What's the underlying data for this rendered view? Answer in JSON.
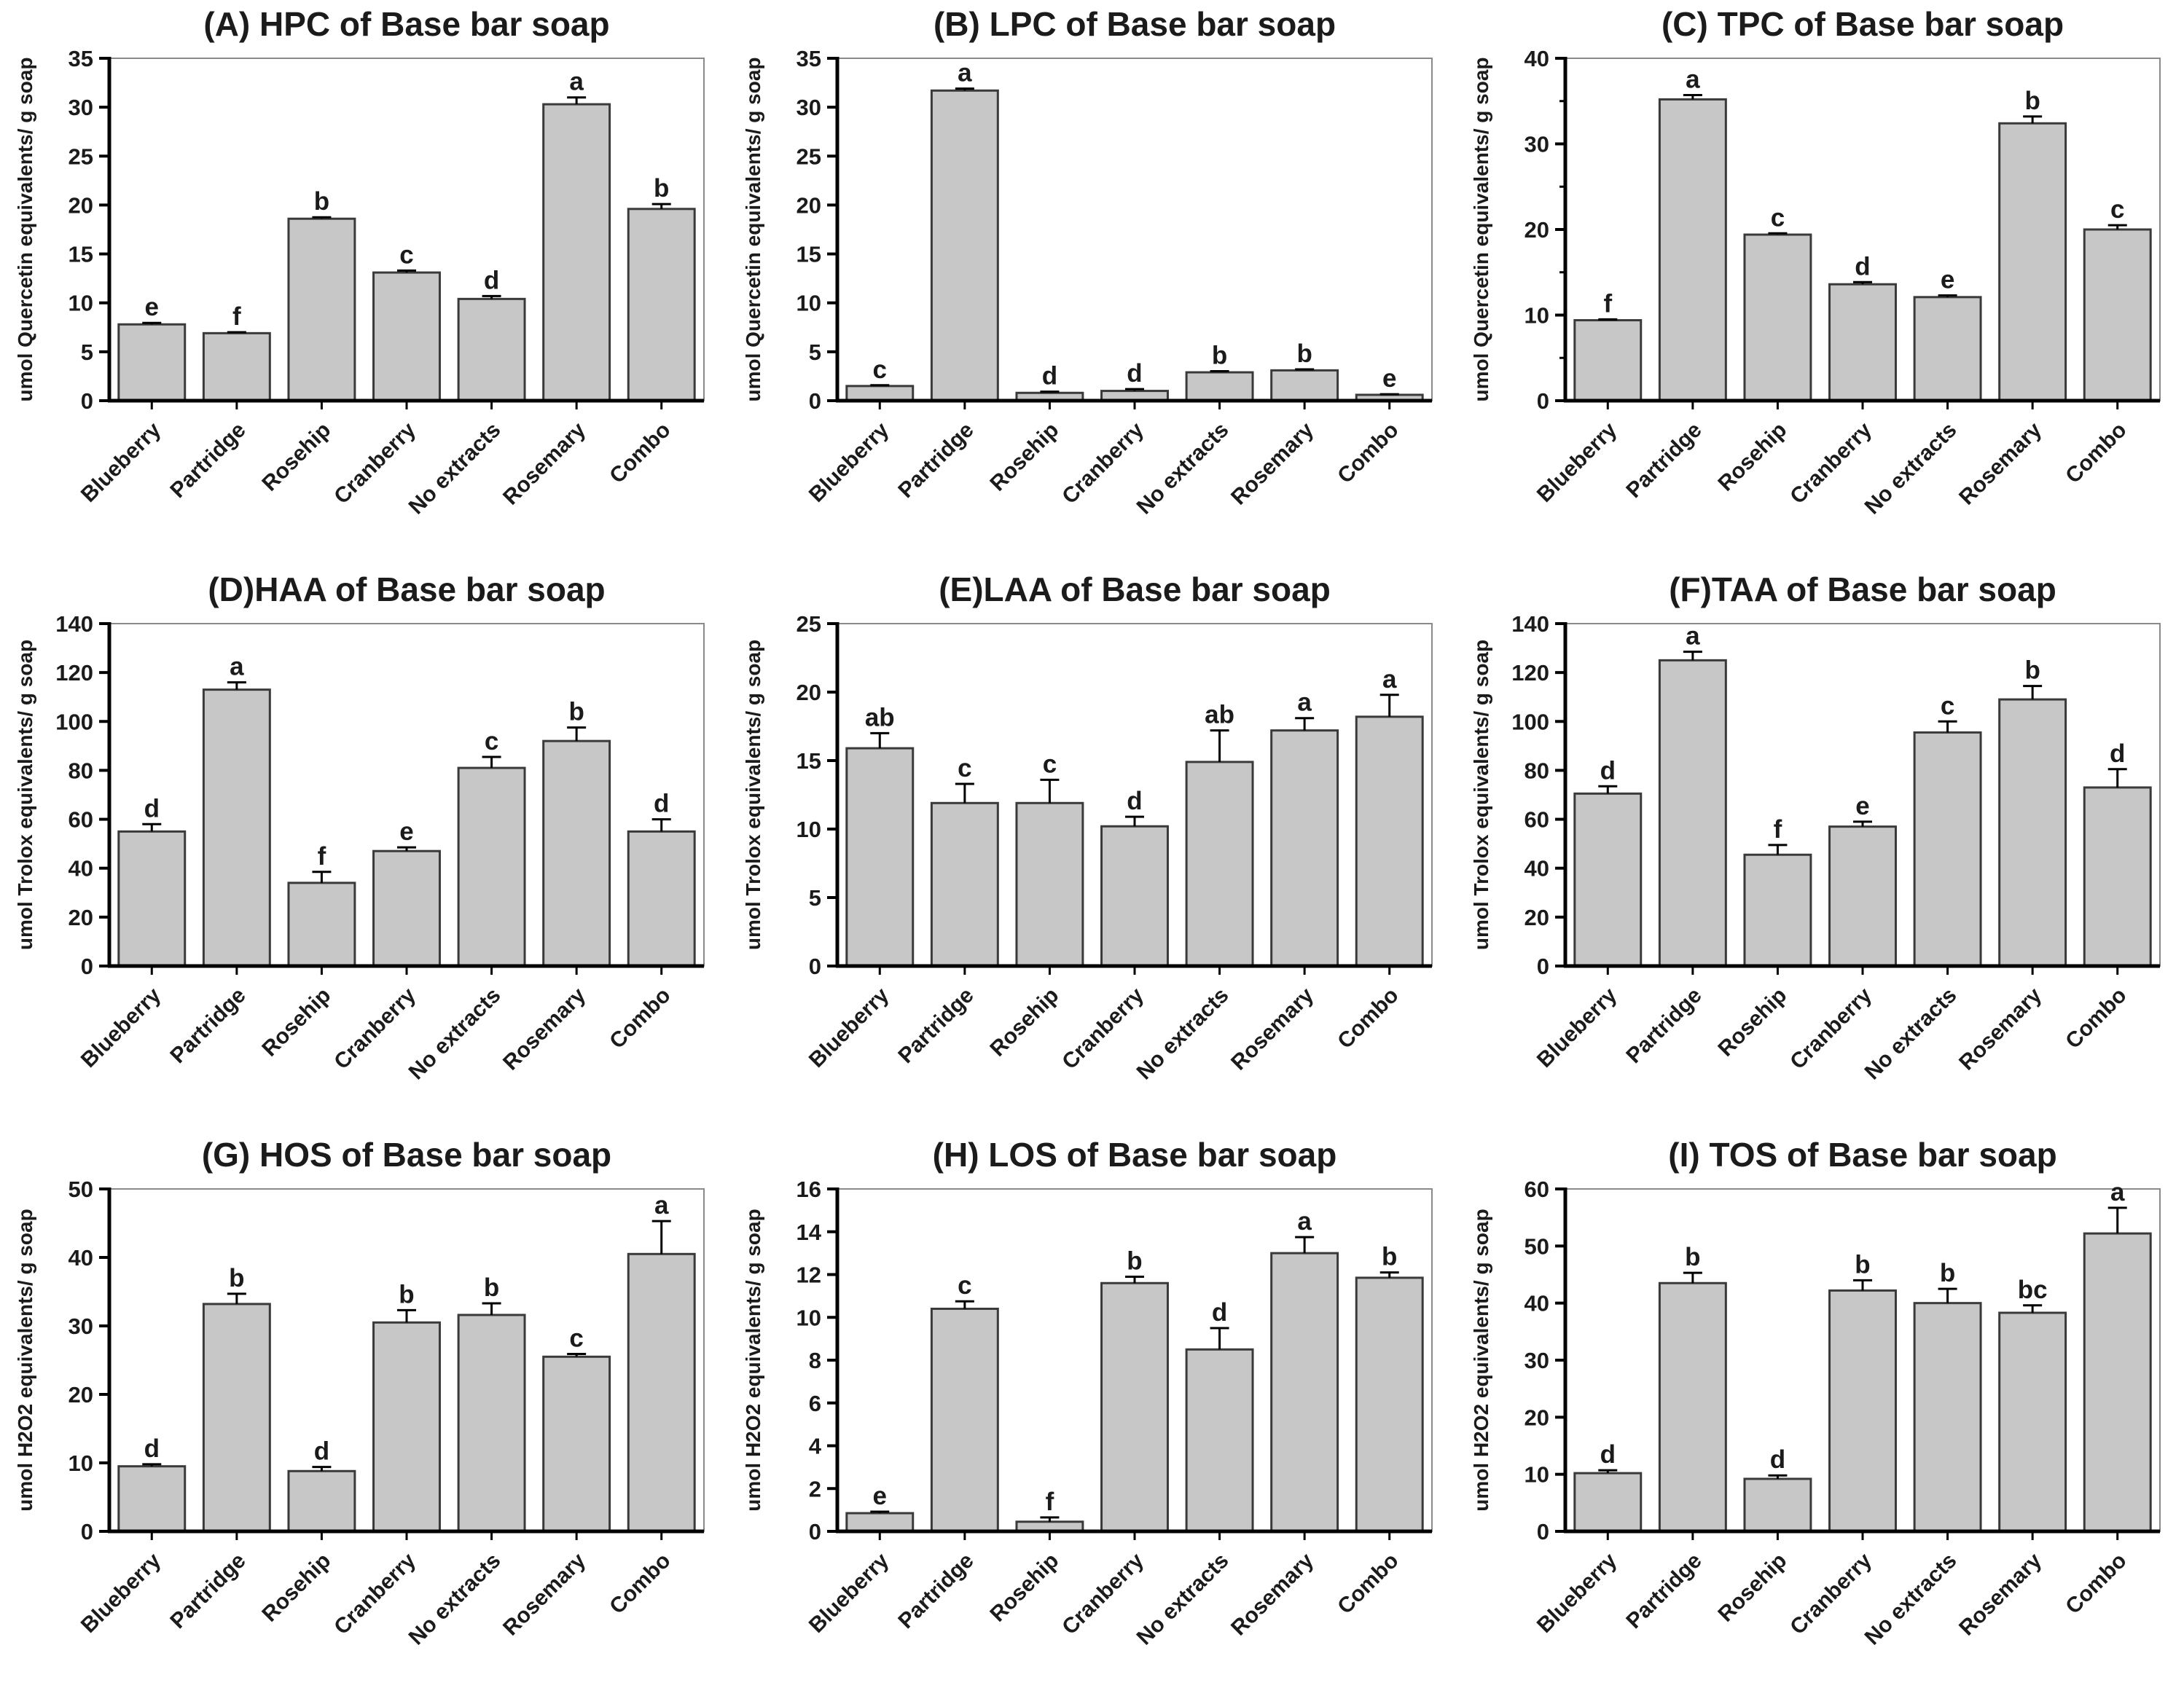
{
  "style": {
    "bar_fill": "#c7c7c7",
    "bar_stroke": "#3a3a3a",
    "axis_color": "#000000",
    "frame_color": "#8a8a8a",
    "text_color": "#1b1b1b",
    "background": "#ffffff"
  },
  "chart_data": [
    {
      "type": "bar",
      "panel": "A",
      "title": "(A) HPC of Base bar soap",
      "ylabel": "umol Quercetin equivalents/ g soap",
      "xlabel": "",
      "categories": [
        "Blueberry",
        "Partridge",
        "Rosehip",
        "Cranberry",
        "No extracts",
        "Rosemary",
        "Combo"
      ],
      "values": [
        7.8,
        6.9,
        18.6,
        13.1,
        10.4,
        30.3,
        19.6
      ],
      "errors": [
        0.15,
        0.1,
        0.15,
        0.2,
        0.3,
        0.7,
        0.5
      ],
      "sig_letters": [
        "e",
        "f",
        "b",
        "c",
        "d",
        "a",
        "b"
      ],
      "ylim": [
        0,
        35
      ],
      "ytick_step": 5,
      "yminor_step": null,
      "grid": false,
      "legend": null
    },
    {
      "type": "bar",
      "panel": "B",
      "title": "(B) LPC of Base bar soap",
      "ylabel": "umol Quercetin equivalents/ g soap",
      "xlabel": "",
      "categories": [
        "Blueberry",
        "Partridge",
        "Rosehip",
        "Cranberry",
        "No extracts",
        "Rosemary",
        "Combo"
      ],
      "values": [
        1.5,
        31.7,
        0.8,
        1.0,
        2.9,
        3.1,
        0.6
      ],
      "errors": [
        0.08,
        0.2,
        0.12,
        0.18,
        0.12,
        0.1,
        0.06
      ],
      "sig_letters": [
        "c",
        "a",
        "d",
        "d",
        "b",
        "b",
        "e"
      ],
      "ylim": [
        0,
        35
      ],
      "ytick_step": 5,
      "yminor_step": null,
      "grid": false,
      "legend": null
    },
    {
      "type": "bar",
      "panel": "C",
      "title": "(C) TPC of Base bar soap",
      "ylabel": "umol Quercetin equivalents/ g soap",
      "xlabel": "",
      "categories": [
        "Blueberry",
        "Partridge",
        "Rosehip",
        "Cranberry",
        "No extracts",
        "Rosemary",
        "Combo"
      ],
      "values": [
        9.4,
        35.2,
        19.4,
        13.6,
        12.1,
        32.4,
        20.0
      ],
      "errors": [
        0.1,
        0.5,
        0.15,
        0.25,
        0.2,
        0.8,
        0.5
      ],
      "sig_letters": [
        "f",
        "a",
        "c",
        "d",
        "e",
        "b",
        "c"
      ],
      "ylim": [
        0,
        40
      ],
      "ytick_step": 10,
      "yminor_step": 5,
      "grid": false,
      "legend": null
    },
    {
      "type": "bar",
      "panel": "D",
      "title": "(D)HAA of Base bar soap",
      "ylabel": "umol Trolox equivalents/ g soap",
      "xlabel": "",
      "categories": [
        "Blueberry",
        "Partridge",
        "Rosehip",
        "Cranberry",
        "No extracts",
        "Rosemary",
        "Combo"
      ],
      "values": [
        55,
        113,
        34,
        47,
        81,
        92,
        55
      ],
      "errors": [
        3,
        3,
        4.5,
        1.5,
        4.5,
        5.5,
        5
      ],
      "sig_letters": [
        "d",
        "a",
        "f",
        "e",
        "c",
        "b",
        "d"
      ],
      "ylim": [
        0,
        140
      ],
      "ytick_step": 20,
      "yminor_step": null,
      "grid": false,
      "legend": null
    },
    {
      "type": "bar",
      "panel": "E",
      "title": "(E)LAA of Base bar soap",
      "ylabel": "umol Trolox equivalents/ g soap",
      "xlabel": "",
      "categories": [
        "Blueberry",
        "Partridge",
        "Rosehip",
        "Cranberry",
        "No extracts",
        "Rosemary",
        "Combo"
      ],
      "values": [
        15.9,
        11.9,
        11.9,
        10.2,
        14.9,
        17.2,
        18.2
      ],
      "errors": [
        1.1,
        1.4,
        1.7,
        0.7,
        2.3,
        0.9,
        1.6
      ],
      "sig_letters": [
        "ab",
        "c",
        "c",
        "d",
        "ab",
        "a",
        "a"
      ],
      "ylim": [
        0,
        25
      ],
      "ytick_step": 5,
      "yminor_step": null,
      "grid": false,
      "legend": null
    },
    {
      "type": "bar",
      "panel": "F",
      "title": "(F)TAA of Base bar soap",
      "ylabel": "umol Trolox equivalents/ g soap",
      "xlabel": "",
      "categories": [
        "Blueberry",
        "Partridge",
        "Rosehip",
        "Cranberry",
        "No extracts",
        "Rosemary",
        "Combo"
      ],
      "values": [
        70.5,
        125,
        45.5,
        57,
        95.5,
        109,
        73
      ],
      "errors": [
        3,
        3.5,
        4,
        2,
        4.5,
        5.5,
        7.5
      ],
      "sig_letters": [
        "d",
        "a",
        "f",
        "e",
        "c",
        "b",
        "d"
      ],
      "ylim": [
        0,
        140
      ],
      "ytick_step": 20,
      "yminor_step": null,
      "grid": false,
      "legend": null
    },
    {
      "type": "bar",
      "panel": "G",
      "title": "(G) HOS of Base bar soap",
      "ylabel": "umol H2O2 equivalents/ g soap",
      "xlabel": "",
      "categories": [
        "Blueberry",
        "Partridge",
        "Rosehip",
        "Cranberry",
        "No extracts",
        "Rosemary",
        "Combo"
      ],
      "values": [
        9.5,
        33.2,
        8.8,
        30.5,
        31.6,
        25.5,
        40.5
      ],
      "errors": [
        0.3,
        1.5,
        0.6,
        1.8,
        1.7,
        0.4,
        4.8
      ],
      "sig_letters": [
        "d",
        "b",
        "d",
        "b",
        "b",
        "c",
        "a"
      ],
      "ylim": [
        0,
        50
      ],
      "ytick_step": 10,
      "yminor_step": null,
      "grid": false,
      "legend": null
    },
    {
      "type": "bar",
      "panel": "H",
      "title": "(H) LOS of Base bar soap",
      "ylabel": "umol H2O2 equivalents/ g soap",
      "xlabel": "",
      "categories": [
        "Blueberry",
        "Partridge",
        "Rosehip",
        "Cranberry",
        "No extracts",
        "Rosemary",
        "Combo"
      ],
      "values": [
        0.85,
        10.4,
        0.45,
        11.6,
        8.5,
        13.0,
        11.85
      ],
      "errors": [
        0.07,
        0.35,
        0.2,
        0.3,
        1.0,
        0.75,
        0.25
      ],
      "sig_letters": [
        "e",
        "c",
        "f",
        "b",
        "d",
        "a",
        "b"
      ],
      "ylim": [
        0,
        16
      ],
      "ytick_step": 2,
      "yminor_step": null,
      "grid": false,
      "legend": null
    },
    {
      "type": "bar",
      "panel": "I",
      "title": "(I) TOS of Base bar soap",
      "ylabel": "umol H2O2 equivalents/ g soap",
      "xlabel": "",
      "categories": [
        "Blueberry",
        "Partridge",
        "Rosehip",
        "Cranberry",
        "No extracts",
        "Rosemary",
        "Combo"
      ],
      "values": [
        10.2,
        43.5,
        9.2,
        42.2,
        40.0,
        38.3,
        52.2
      ],
      "errors": [
        0.5,
        1.8,
        0.6,
        1.8,
        2.5,
        1.3,
        4.5
      ],
      "sig_letters": [
        "d",
        "b",
        "d",
        "b",
        "b",
        "bc",
        "a"
      ],
      "ylim": [
        0,
        60
      ],
      "ytick_step": 10,
      "yminor_step": null,
      "grid": false,
      "legend": null
    }
  ]
}
